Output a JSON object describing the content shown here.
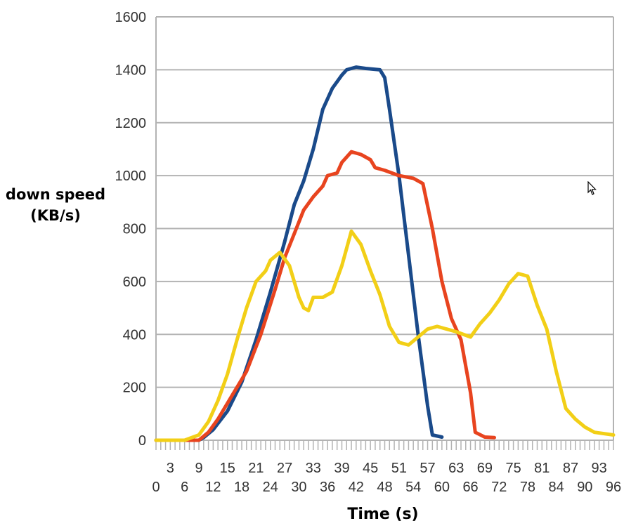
{
  "chart_data": {
    "type": "line",
    "ylabel_line1": "down speed",
    "ylabel_line2": "(KB/s)",
    "xlabel": "Time (s)",
    "xlim": [
      0,
      96
    ],
    "ylim": [
      0,
      1600
    ],
    "yticks": [
      0,
      200,
      400,
      600,
      800,
      1000,
      1200,
      1400,
      1600
    ],
    "xticks_upper": [
      3,
      9,
      15,
      21,
      27,
      33,
      39,
      45,
      51,
      57,
      63,
      69,
      75,
      81,
      87,
      93
    ],
    "xticks_lower": [
      0,
      6,
      12,
      18,
      24,
      30,
      36,
      42,
      48,
      54,
      60,
      66,
      72,
      78,
      84,
      90,
      96
    ],
    "grid": "horizontal",
    "series": [
      {
        "color": "#1a4a8a",
        "points": [
          [
            0,
            0
          ],
          [
            6,
            0
          ],
          [
            9,
            0
          ],
          [
            10,
            10
          ],
          [
            12,
            40
          ],
          [
            15,
            110
          ],
          [
            18,
            220
          ],
          [
            21,
            380
          ],
          [
            24,
            560
          ],
          [
            27,
            750
          ],
          [
            29,
            890
          ],
          [
            31,
            980
          ],
          [
            33,
            1100
          ],
          [
            35,
            1250
          ],
          [
            37,
            1330
          ],
          [
            39,
            1380
          ],
          [
            40,
            1400
          ],
          [
            42,
            1410
          ],
          [
            44,
            1405
          ],
          [
            47,
            1400
          ],
          [
            48,
            1370
          ],
          [
            49,
            1250
          ],
          [
            51,
            1000
          ],
          [
            53,
            700
          ],
          [
            55,
            400
          ],
          [
            57,
            130
          ],
          [
            58,
            20
          ],
          [
            60,
            12
          ]
        ]
      },
      {
        "color": "#e8441f",
        "points": [
          [
            0,
            0
          ],
          [
            6,
            0
          ],
          [
            9,
            0
          ],
          [
            11,
            30
          ],
          [
            13,
            80
          ],
          [
            16,
            170
          ],
          [
            19,
            260
          ],
          [
            22,
            400
          ],
          [
            25,
            570
          ],
          [
            27,
            690
          ],
          [
            29,
            780
          ],
          [
            31,
            870
          ],
          [
            33,
            920
          ],
          [
            35,
            960
          ],
          [
            36,
            1000
          ],
          [
            38,
            1010
          ],
          [
            39,
            1050
          ],
          [
            41,
            1090
          ],
          [
            43,
            1080
          ],
          [
            45,
            1060
          ],
          [
            46,
            1030
          ],
          [
            48,
            1020
          ],
          [
            51,
            1000
          ],
          [
            54,
            990
          ],
          [
            56,
            970
          ],
          [
            58,
            800
          ],
          [
            60,
            600
          ],
          [
            62,
            460
          ],
          [
            64,
            380
          ],
          [
            66,
            180
          ],
          [
            67,
            30
          ],
          [
            69,
            12
          ],
          [
            71,
            10
          ]
        ]
      },
      {
        "color": "#f2cf17",
        "points": [
          [
            0,
            0
          ],
          [
            6,
            0
          ],
          [
            9,
            20
          ],
          [
            11,
            70
          ],
          [
            13,
            150
          ],
          [
            15,
            250
          ],
          [
            17,
            380
          ],
          [
            19,
            500
          ],
          [
            21,
            600
          ],
          [
            23,
            640
          ],
          [
            24,
            680
          ],
          [
            26,
            710
          ],
          [
            28,
            660
          ],
          [
            30,
            540
          ],
          [
            31,
            500
          ],
          [
            32,
            490
          ],
          [
            33,
            540
          ],
          [
            35,
            540
          ],
          [
            37,
            560
          ],
          [
            39,
            660
          ],
          [
            41,
            790
          ],
          [
            43,
            740
          ],
          [
            45,
            640
          ],
          [
            47,
            550
          ],
          [
            49,
            430
          ],
          [
            51,
            370
          ],
          [
            53,
            360
          ],
          [
            55,
            390
          ],
          [
            57,
            420
          ],
          [
            59,
            430
          ],
          [
            61,
            420
          ],
          [
            63,
            410
          ],
          [
            66,
            390
          ],
          [
            68,
            440
          ],
          [
            70,
            480
          ],
          [
            72,
            530
          ],
          [
            74,
            590
          ],
          [
            76,
            630
          ],
          [
            78,
            620
          ],
          [
            80,
            510
          ],
          [
            82,
            420
          ],
          [
            84,
            260
          ],
          [
            86,
            120
          ],
          [
            88,
            80
          ],
          [
            90,
            50
          ],
          [
            92,
            30
          ],
          [
            96,
            20
          ]
        ]
      }
    ]
  }
}
